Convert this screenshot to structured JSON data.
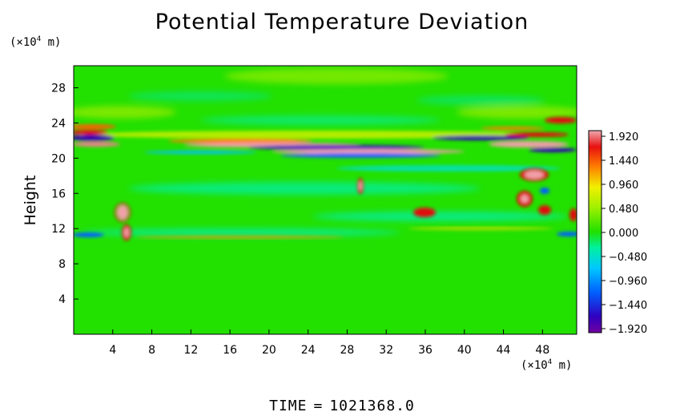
{
  "chart_data": {
    "type": "heatmap",
    "title": "Potential Temperature Deviation",
    "xlabel": "",
    "ylabel": "Height",
    "x_unit_note": "(×10",
    "x_unit_exp": "4",
    "x_unit_tail": " m)",
    "y_unit_note": "(×10",
    "y_unit_exp": "4",
    "y_unit_tail": " m)",
    "xlim": [
      0,
      51.5
    ],
    "ylim": [
      0,
      30.5
    ],
    "x_ticks": [
      "4",
      "8",
      "12",
      "16",
      "20",
      "24",
      "28",
      "32",
      "36",
      "40",
      "44",
      "48"
    ],
    "y_ticks": [
      "4",
      "8",
      "12",
      "16",
      "20",
      "24",
      "28"
    ],
    "colorbar": {
      "range": [
        -1.92,
        1.92
      ],
      "labels": [
        "1.920",
        "1.440",
        "0.960",
        "0.480",
        "0.000",
        "−0.480",
        "−0.960",
        "−1.440",
        "−1.920"
      ]
    },
    "time_label": "TIME",
    "time_equals": "=",
    "time_value": "1021368.0",
    "colors": {
      "background_field": "#22e000",
      "positive_max": "#f0a0a0",
      "negative_max": "#8000a0"
    }
  }
}
